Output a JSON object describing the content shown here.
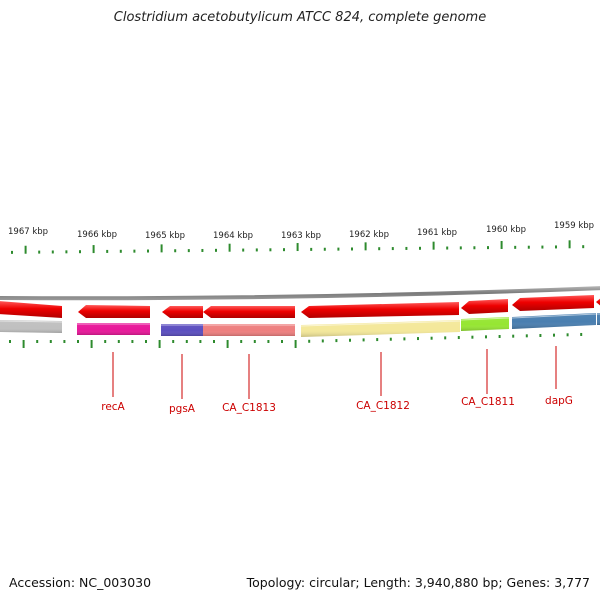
{
  "title": "Clostridium acetobutylicum ATCC 824, complete genome",
  "footer": {
    "accession": "Accession: NC_003030",
    "topology": "Topology: circular; Length: 3,940,880 bp; Genes: 3,777"
  },
  "scale": {
    "unit": "kbp",
    "labels": [
      "1967 kbp",
      "1966 kbp",
      "1965 kbp",
      "1964 kbp",
      "1963 kbp",
      "1962 kbp",
      "1961 kbp",
      "1960 kbp",
      "1959 kbp"
    ]
  },
  "genes": [
    {
      "label": "",
      "strand": "minus",
      "color": "#c0c0c0"
    },
    {
      "label": "recA",
      "strand": "minus",
      "color": "#e8189a"
    },
    {
      "label": "pgsA",
      "strand": "minus",
      "color": "#5c4fc0"
    },
    {
      "label": "CA_C1813",
      "strand": "minus",
      "color": "#ee7f7f"
    },
    {
      "label": "CA_C1812",
      "strand": "minus",
      "color": "#f4e89a"
    },
    {
      "label": "CA_C1811",
      "strand": "minus",
      "color": "#96e633"
    },
    {
      "label": "dapG",
      "strand": "minus",
      "color": "#4a7fb0"
    },
    {
      "label": "",
      "strand": "minus",
      "color": "#4a7fb0"
    }
  ],
  "colors": {
    "strand_feature": "#ee0000",
    "label_line": "#cc0000",
    "tick": "#2e8b2e",
    "backbone": "#8a8a8a"
  }
}
